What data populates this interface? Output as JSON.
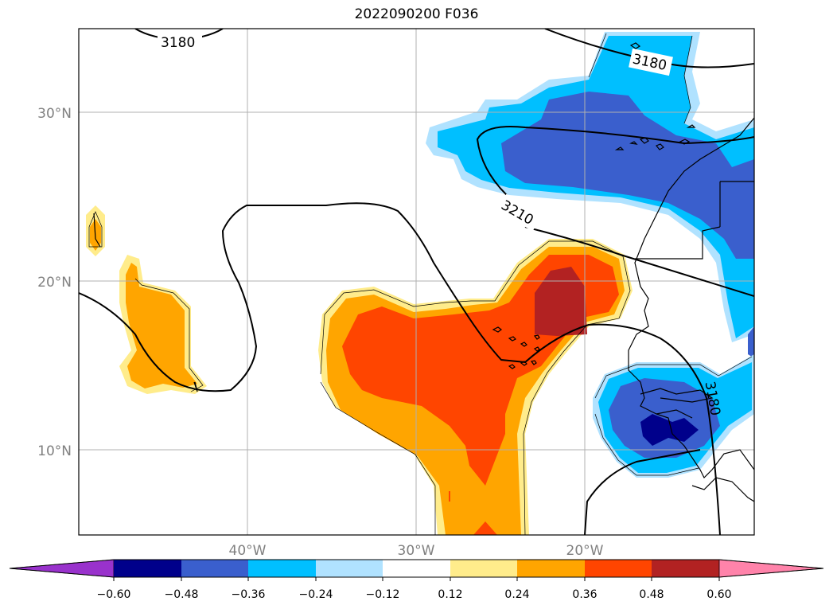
{
  "title": "2022090200 F036",
  "axes": {
    "lat_labels": [
      "30°N",
      "20°N",
      "10°N"
    ],
    "lon_labels": [
      "40°W",
      "30°W",
      "20°W"
    ]
  },
  "contour_labels": [
    "3180",
    "3180",
    "3210",
    "3180"
  ],
  "colorbar": {
    "ticks": [
      "−0.60",
      "−0.48",
      "−0.36",
      "−0.24",
      "−0.12",
      "0.12",
      "0.24",
      "0.36",
      "0.48",
      "0.60"
    ],
    "colors": [
      "#9932cc",
      "#00008b",
      "#3a5fcd",
      "#00bfff",
      "#b0e2ff",
      "#ffffff",
      "#ffec8b",
      "#ffa500",
      "#ff4500",
      "#b22222",
      "#ff83aa"
    ]
  }
}
